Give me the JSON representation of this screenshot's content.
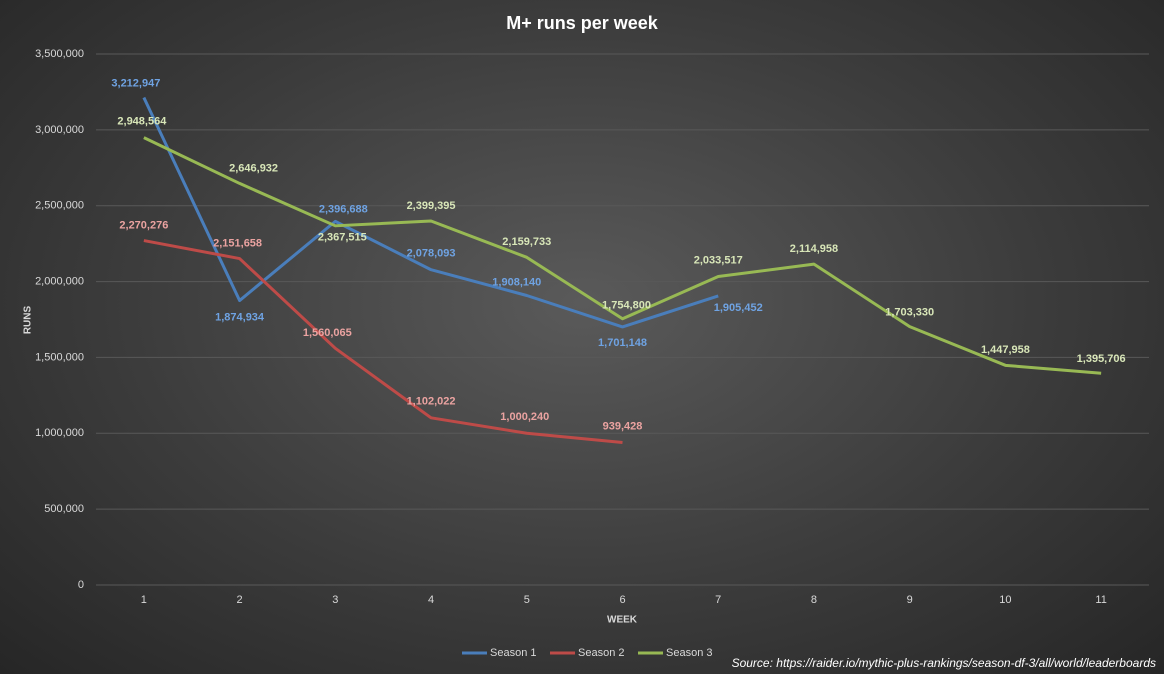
{
  "chart_data": {
    "type": "line",
    "title": "M+ runs  per week",
    "x_label": "WEEK",
    "y_label": "RUNS",
    "source": "Source: https://raider.io/mythic-plus-rankings/season-df-3/all/world/leaderboards",
    "categories": [
      "1",
      "2",
      "3",
      "4",
      "5",
      "6",
      "7",
      "8",
      "9",
      "10",
      "11"
    ],
    "series": [
      {
        "name": "Season 1",
        "color": "#4a7ebb",
        "label_color": "#6fa3e3",
        "values": [
          3212947,
          1874934,
          2396688,
          2078093,
          1908140,
          1701148,
          1905452,
          null,
          null,
          null,
          null
        ],
        "value_labels": [
          "3,212,947",
          "1,874,934",
          "2,396,688",
          "2,078,093",
          "1,908,140",
          "1,701,148",
          "1,905,452",
          null,
          null,
          null,
          null
        ]
      },
      {
        "name": "Season 2",
        "color": "#be4b48",
        "label_color": "#eba3a1",
        "values": [
          2270276,
          2151658,
          1560065,
          1102022,
          1000240,
          939428,
          null,
          null,
          null,
          null,
          null
        ],
        "value_labels": [
          "2,270,276",
          "2,151,658",
          "1,560,065",
          "1,102,022",
          "1,000,240",
          "939,428",
          null,
          null,
          null,
          null,
          null
        ]
      },
      {
        "name": "Season 3",
        "color": "#98b954",
        "label_color": "#d8e6b8",
        "values": [
          2948564,
          2646932,
          2367515,
          2399395,
          2159733,
          1754800,
          2033517,
          2114958,
          1703330,
          1447958,
          1395706
        ],
        "value_labels": [
          "2,948,564",
          "2,646,932",
          "2,367,515",
          "2,399,395",
          "2,159,733",
          "1,754,800",
          "2,033,517",
          "2,114,958",
          "1,703,330",
          "1,447,958",
          "1,395,706"
        ]
      }
    ],
    "ylim": [
      0,
      3500000
    ],
    "yticks": [
      0,
      {
        "value": 500000,
        "label": "500,000"
      },
      {
        "value": 1000000,
        "label": "1,000,000"
      },
      {
        "value": 1500000,
        "label": "1,500,000"
      },
      {
        "value": 2000000,
        "label": "2,000,000"
      },
      {
        "value": 2500000,
        "label": "2,500,000"
      },
      {
        "value": 3000000,
        "label": "3,000,000"
      },
      {
        "value": 3500000,
        "label": "3,500,000"
      }
    ],
    "grid": true,
    "legend": "bottom"
  }
}
